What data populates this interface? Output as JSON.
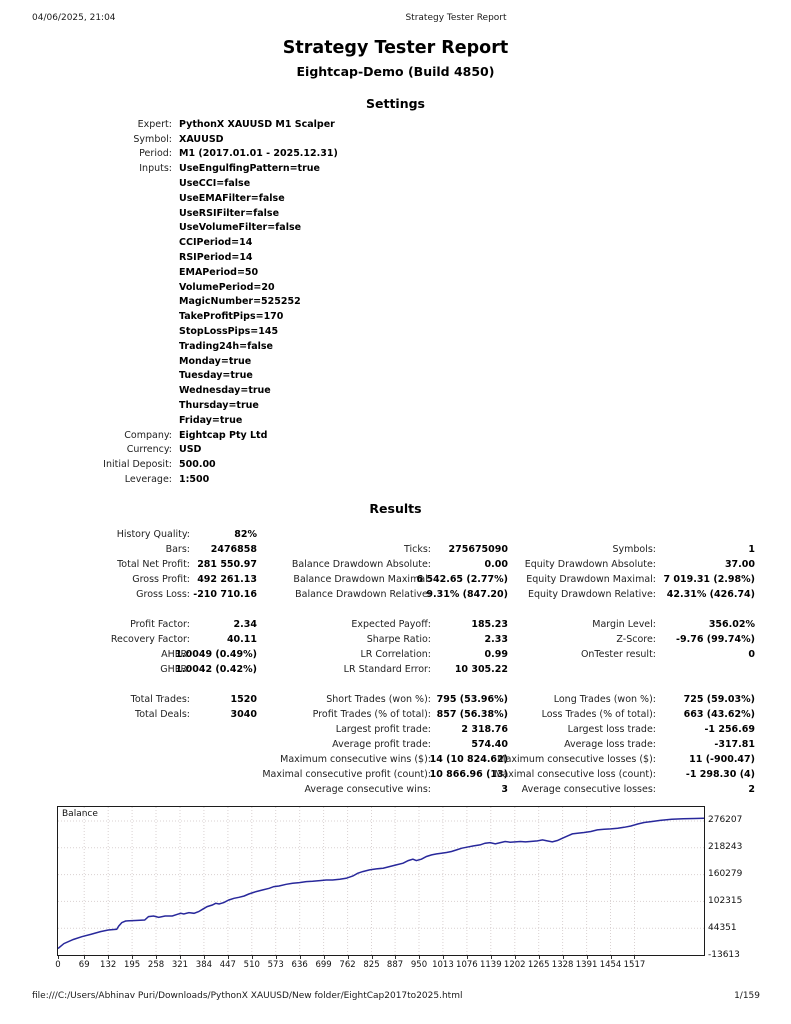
{
  "page_header": {
    "datetime": "04/06/2025, 21:04",
    "title": "Strategy Tester Report"
  },
  "report": {
    "title": "Strategy Tester Report",
    "subtitle": "Eightcap-Demo (Build 4850)",
    "settings_heading": "Settings",
    "results_heading": "Results"
  },
  "settings": {
    "rows": [
      [
        "Expert:",
        "PythonX XAUUSD M1 Scalper"
      ],
      [
        "Symbol:",
        "XAUUSD"
      ],
      [
        "Period:",
        "M1 (2017.01.01 - 2025.12.31)"
      ],
      [
        "Inputs:",
        "UseEngulfingPattern=true"
      ],
      [
        "",
        "UseCCI=false"
      ],
      [
        "",
        "UseEMAFilter=false"
      ],
      [
        "",
        "UseRSIFilter=false"
      ],
      [
        "",
        "UseVolumeFilter=false"
      ],
      [
        "",
        "CCIPeriod=14"
      ],
      [
        "",
        "RSIPeriod=14"
      ],
      [
        "",
        "EMAPeriod=50"
      ],
      [
        "",
        "VolumePeriod=20"
      ],
      [
        "",
        "MagicNumber=525252"
      ],
      [
        "",
        "TakeProfitPips=170"
      ],
      [
        "",
        "StopLossPips=145"
      ],
      [
        "",
        "Trading24h=false"
      ],
      [
        "",
        "Monday=true"
      ],
      [
        "",
        "Tuesday=true"
      ],
      [
        "",
        "Wednesday=true"
      ],
      [
        "",
        "Thursday=true"
      ],
      [
        "",
        "Friday=true"
      ],
      [
        "Company:",
        "Eightcap Pty Ltd"
      ],
      [
        "Currency:",
        "USD"
      ],
      [
        "Initial Deposit:",
        "500.00"
      ],
      [
        "Leverage:",
        "1:500"
      ]
    ]
  },
  "results": {
    "groups": [
      [
        [
          "History Quality:",
          "82%",
          "",
          "",
          "",
          ""
        ],
        [
          "Bars:",
          "2476858",
          "Ticks:",
          "275675090",
          "Symbols:",
          "1"
        ],
        [
          "Total Net Profit:",
          "281 550.97",
          "Balance Drawdown Absolute:",
          "0.00",
          "Equity Drawdown Absolute:",
          "37.00"
        ],
        [
          "Gross Profit:",
          "492 261.13",
          "Balance Drawdown Maximal:",
          "6 542.65 (2.77%)",
          "Equity Drawdown Maximal:",
          "7 019.31 (2.98%)"
        ],
        [
          "Gross Loss:",
          "-210 710.16",
          "Balance Drawdown Relative:",
          "9.31% (847.20)",
          "Equity Drawdown Relative:",
          "42.31% (426.74)"
        ]
      ],
      [
        [
          "Profit Factor:",
          "2.34",
          "Expected Payoff:",
          "185.23",
          "Margin Level:",
          "356.02%"
        ],
        [
          "Recovery Factor:",
          "40.11",
          "Sharpe Ratio:",
          "2.33",
          "Z-Score:",
          "-9.76 (99.74%)"
        ],
        [
          "AHPR:",
          "1.0049 (0.49%)",
          "LR Correlation:",
          "0.99",
          "OnTester result:",
          "0"
        ],
        [
          "GHPR:",
          "1.0042 (0.42%)",
          "LR Standard Error:",
          "10 305.22",
          "",
          ""
        ]
      ],
      [
        [
          "Total Trades:",
          "1520",
          "Short Trades (won %):",
          "795 (53.96%)",
          "Long Trades (won %):",
          "725 (59.03%)"
        ],
        [
          "Total Deals:",
          "3040",
          "Profit Trades (% of total):",
          "857 (56.38%)",
          "Loss Trades (% of total):",
          "663 (43.62%)"
        ],
        [
          "",
          "",
          "Largest profit trade:",
          "2 318.76",
          "Largest loss trade:",
          "-1 256.69"
        ],
        [
          "",
          "",
          "Average profit trade:",
          "574.40",
          "Average loss trade:",
          "-317.81"
        ],
        [
          "",
          "",
          "Maximum consecutive wins ($):",
          "14 (10 824.62)",
          "Maximum consecutive losses ($):",
          "11 (-900.47)"
        ],
        [
          "",
          "",
          "Maximal consecutive profit (count):",
          "10 866.96 (13)",
          "Maximal consecutive loss (count):",
          "-1 298.30 (4)"
        ],
        [
          "",
          "",
          "Average consecutive wins:",
          "3",
          "Average consecutive losses:",
          "2"
        ]
      ]
    ]
  },
  "chart_data": {
    "type": "line",
    "title": "Balance",
    "legend_position": "top-left-inside",
    "grid": true,
    "x_ticks": [
      0,
      69,
      132,
      195,
      258,
      321,
      384,
      447,
      510,
      573,
      636,
      699,
      762,
      825,
      887,
      950,
      1013,
      1076,
      1139,
      1202,
      1265,
      1328,
      1391,
      1454,
      1517
    ],
    "y_ticks": [
      -13613,
      44351,
      102315,
      160279,
      218243,
      276207
    ],
    "ylim": [
      -13613,
      306400
    ],
    "x_data_max": 1520,
    "x_axis_max_visual": 1700,
    "line_color": "#28289b",
    "grid_color": "#d9d1d1",
    "series": [
      {
        "name": "Balance",
        "points": [
          [
            0,
            500
          ],
          [
            14,
            11000
          ],
          [
            36,
            20000
          ],
          [
            56,
            26000
          ],
          [
            77,
            31000
          ],
          [
            100,
            37000
          ],
          [
            118,
            40500
          ],
          [
            138,
            42000
          ],
          [
            143,
            49000
          ],
          [
            150,
            56500
          ],
          [
            159,
            60000
          ],
          [
            182,
            61000
          ],
          [
            204,
            62000
          ],
          [
            213,
            69500
          ],
          [
            225,
            70800
          ],
          [
            237,
            68000
          ],
          [
            252,
            70800
          ],
          [
            269,
            70800
          ],
          [
            281,
            74400
          ],
          [
            289,
            76600
          ],
          [
            296,
            75100
          ],
          [
            308,
            78100
          ],
          [
            320,
            76600
          ],
          [
            331,
            80300
          ],
          [
            340,
            85300
          ],
          [
            351,
            91100
          ],
          [
            363,
            94600
          ],
          [
            371,
            98200
          ],
          [
            379,
            96700
          ],
          [
            390,
            99700
          ],
          [
            402,
            105400
          ],
          [
            414,
            109000
          ],
          [
            426,
            111200
          ],
          [
            438,
            114000
          ],
          [
            449,
            118300
          ],
          [
            466,
            123500
          ],
          [
            481,
            127000
          ],
          [
            497,
            130700
          ],
          [
            508,
            134300
          ],
          [
            520,
            135600
          ],
          [
            537,
            139300
          ],
          [
            552,
            141500
          ],
          [
            568,
            143000
          ],
          [
            584,
            145200
          ],
          [
            599,
            145800
          ],
          [
            616,
            147300
          ],
          [
            631,
            148600
          ],
          [
            646,
            148600
          ],
          [
            663,
            150100
          ],
          [
            678,
            152300
          ],
          [
            694,
            157300
          ],
          [
            705,
            163100
          ],
          [
            717,
            166800
          ],
          [
            733,
            170300
          ],
          [
            749,
            172500
          ],
          [
            765,
            174000
          ],
          [
            781,
            177700
          ],
          [
            796,
            181100
          ],
          [
            812,
            184800
          ],
          [
            824,
            190600
          ],
          [
            835,
            193500
          ],
          [
            843,
            190600
          ],
          [
            855,
            193500
          ],
          [
            867,
            199300
          ],
          [
            879,
            202800
          ],
          [
            891,
            205000
          ],
          [
            902,
            206500
          ],
          [
            914,
            208000
          ],
          [
            926,
            210100
          ],
          [
            938,
            213600
          ],
          [
            950,
            217300
          ],
          [
            962,
            219400
          ],
          [
            978,
            222300
          ],
          [
            993,
            224500
          ],
          [
            1005,
            228100
          ],
          [
            1017,
            229500
          ],
          [
            1029,
            226600
          ],
          [
            1041,
            229500
          ],
          [
            1052,
            231700
          ],
          [
            1064,
            230200
          ],
          [
            1076,
            230900
          ],
          [
            1088,
            231700
          ],
          [
            1100,
            230900
          ],
          [
            1111,
            231700
          ],
          [
            1128,
            233000
          ],
          [
            1140,
            235200
          ],
          [
            1151,
            233000
          ],
          [
            1163,
            230900
          ],
          [
            1175,
            233900
          ],
          [
            1187,
            238900
          ],
          [
            1199,
            243900
          ],
          [
            1210,
            248200
          ],
          [
            1222,
            249700
          ],
          [
            1238,
            251200
          ],
          [
            1254,
            253400
          ],
          [
            1269,
            256800
          ],
          [
            1285,
            258300
          ],
          [
            1301,
            259000
          ],
          [
            1317,
            260400
          ],
          [
            1332,
            262600
          ],
          [
            1348,
            265400
          ],
          [
            1364,
            269700
          ],
          [
            1379,
            272800
          ],
          [
            1398,
            275000
          ],
          [
            1417,
            277500
          ],
          [
            1444,
            280000
          ],
          [
            1471,
            281000
          ],
          [
            1498,
            281500
          ],
          [
            1520,
            282051
          ]
        ]
      }
    ]
  },
  "page_footer": {
    "file_url": "file:///C:/Users/Abhinav Puri/Downloads/PythonX XAUUSD/New folder/EightCap2017to2025.html",
    "page_number": "1/159"
  }
}
